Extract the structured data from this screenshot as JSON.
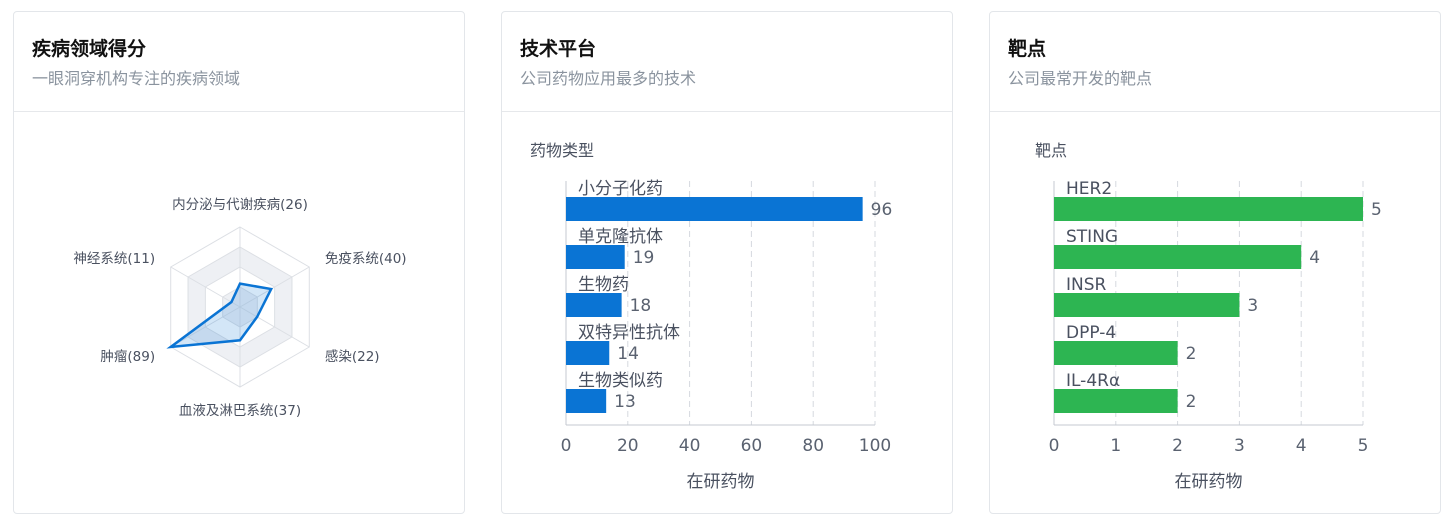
{
  "cards": [
    {
      "title": "疾病领域得分",
      "subtitle": "一眼洞穿机构专注的疾病领域"
    },
    {
      "title": "技术平台",
      "subtitle": "公司药物应用最多的技术"
    },
    {
      "title": "靶点",
      "subtitle": "公司最常开发的靶点"
    }
  ],
  "colors": {
    "radar": "#0a74d4",
    "bar_blue": "#0a74d4",
    "bar_green": "#2db552"
  },
  "chart_data": [
    {
      "type": "radar",
      "categories": [
        "内分泌与代谢疾病",
        "免疫系统",
        "感染",
        "血液及淋巴系统",
        "肿瘤",
        "神经系统"
      ],
      "values": [
        26,
        40,
        22,
        37,
        89,
        11
      ],
      "labels": [
        "内分泌与代谢疾病(26)",
        "免疫系统(40)",
        "感染(22)",
        "血液及淋巴系统(37)",
        "肿瘤(89)",
        "神经系统(11)"
      ],
      "max": 89
    },
    {
      "type": "bar",
      "orientation": "horizontal",
      "title": "药物类型",
      "categories": [
        "小分子化药",
        "单克隆抗体",
        "生物药",
        "双特异性抗体",
        "生物类似药"
      ],
      "values": [
        96,
        19,
        18,
        14,
        13
      ],
      "xlabel": "在研药物",
      "xlim": [
        0,
        100
      ],
      "xticks": [
        "0",
        "20",
        "40",
        "60",
        "80",
        "100"
      ]
    },
    {
      "type": "bar",
      "orientation": "horizontal",
      "title": "靶点",
      "categories": [
        "HER2",
        "STING",
        "INSR",
        "DPP-4",
        "IL-4Rα"
      ],
      "values": [
        5,
        4,
        3,
        2,
        2
      ],
      "xlabel": "在研药物",
      "xlim": [
        0,
        5
      ],
      "xticks": [
        "0",
        "1",
        "2",
        "3",
        "4",
        "5"
      ]
    }
  ]
}
